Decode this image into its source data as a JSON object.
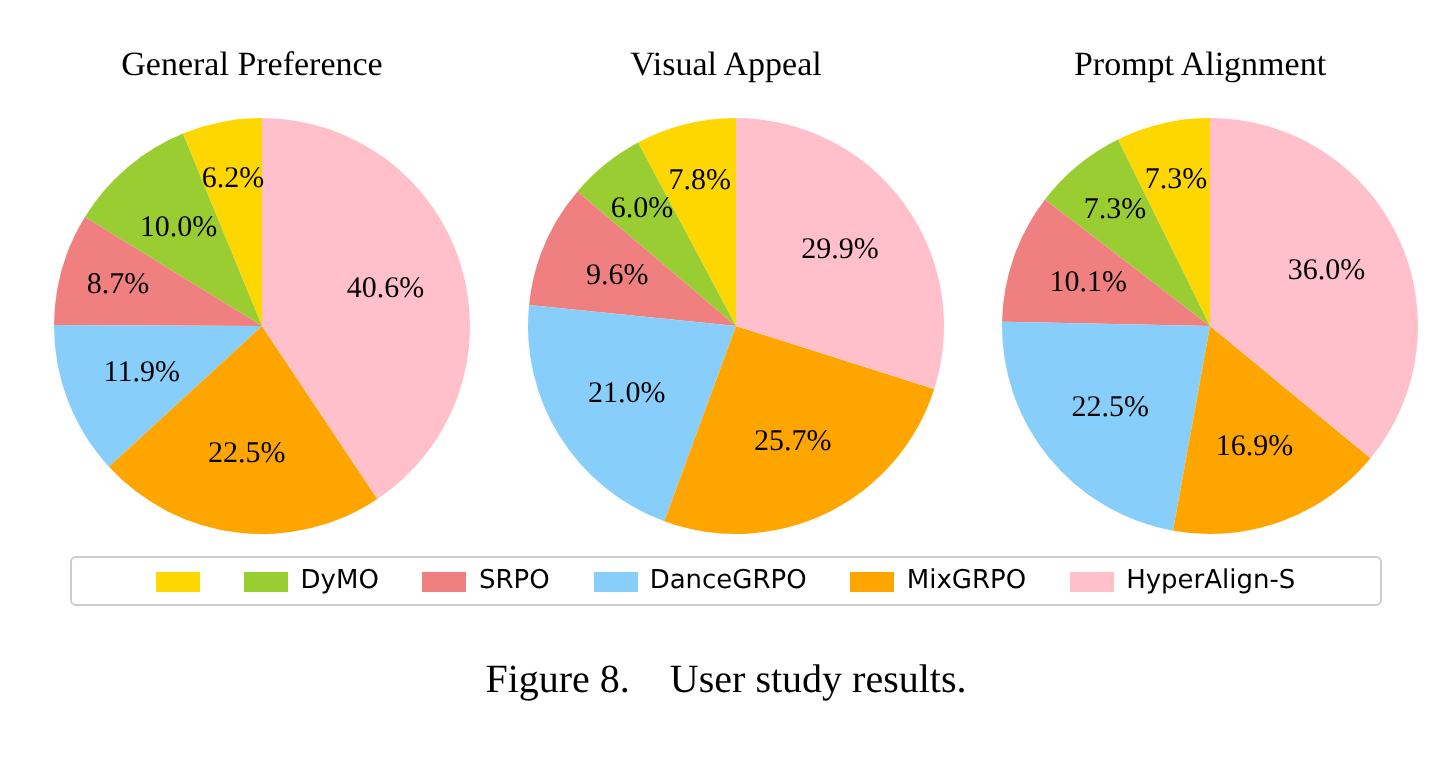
{
  "chart_data": [
    {
      "type": "pie",
      "title": "General Preference",
      "categories": [
        null,
        "DyMO",
        "SRPO",
        "DanceGRPO",
        "MixGRPO",
        "HyperAlign-S"
      ],
      "values": [
        6.2,
        10.0,
        8.7,
        11.9,
        22.5,
        40.6
      ],
      "value_labels": [
        "6.2%",
        "10.0%",
        "8.7%",
        "11.9%",
        "22.5%",
        "40.6%"
      ],
      "colors": [
        "#ffd700",
        "#9acd32",
        "#f08080",
        "#87cefa",
        "#ffa500",
        "#ffc0cb"
      ],
      "legend": "bottom",
      "annotations": [
        "Figure 8.    User study results."
      ]
    },
    {
      "type": "pie",
      "title": "Visual Appeal",
      "values": [
        7.8,
        6.0,
        9.6,
        21.0,
        25.7,
        29.9
      ],
      "value_labels": [
        "7.8%",
        "6.0%",
        "9.6%",
        "21.0%",
        "25.7%",
        "29.9%"
      ],
      "colors": [
        "#ffd700",
        "#9acd32",
        "#f08080",
        "#87cefa",
        "#ffa500",
        "#ffc0cb"
      ]
    },
    {
      "type": "pie",
      "title": "Prompt Alignment",
      "values": [
        7.3,
        7.3,
        10.1,
        22.5,
        16.9,
        36.0
      ],
      "value_labels": [
        "7.3%",
        "7.3%",
        "10.1%",
        "22.5%",
        "16.9%",
        "36.0%"
      ],
      "colors": [
        "#ffd700",
        "#9acd32",
        "#f08080",
        "#87cefa",
        "#ffa500",
        "#ffc0cb"
      ]
    }
  ]
}
